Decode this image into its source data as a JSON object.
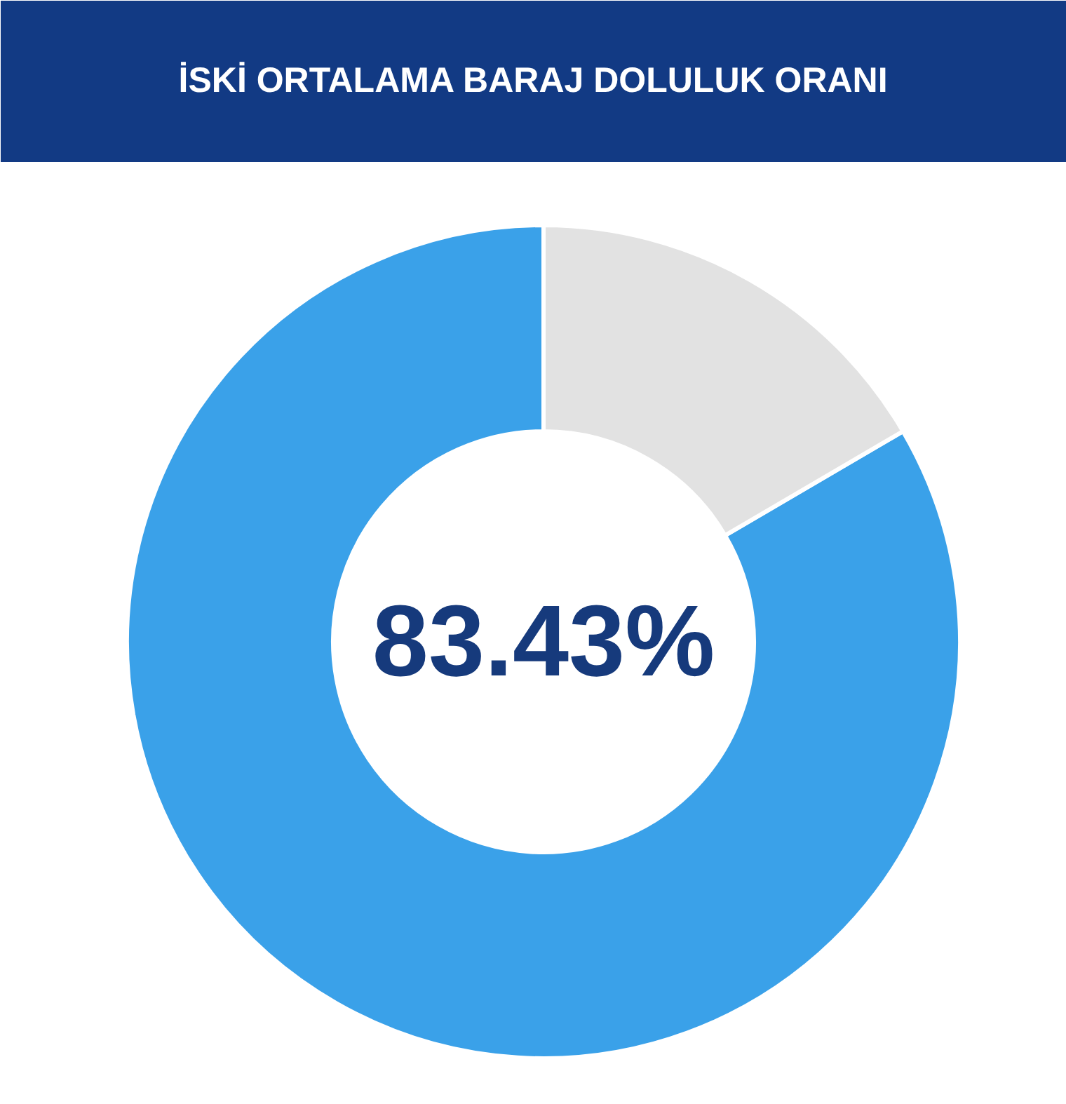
{
  "chart_data": {
    "type": "donut",
    "title": "İSKİ ORTALAMA BARAJ DOLULUK ORANI",
    "categories": [
      null,
      null
    ],
    "values": [
      83.43,
      16.57
    ],
    "colors": [
      "#3aa1e9",
      "#e2e2e2"
    ],
    "annotations": [
      "83.43%"
    ]
  }
}
